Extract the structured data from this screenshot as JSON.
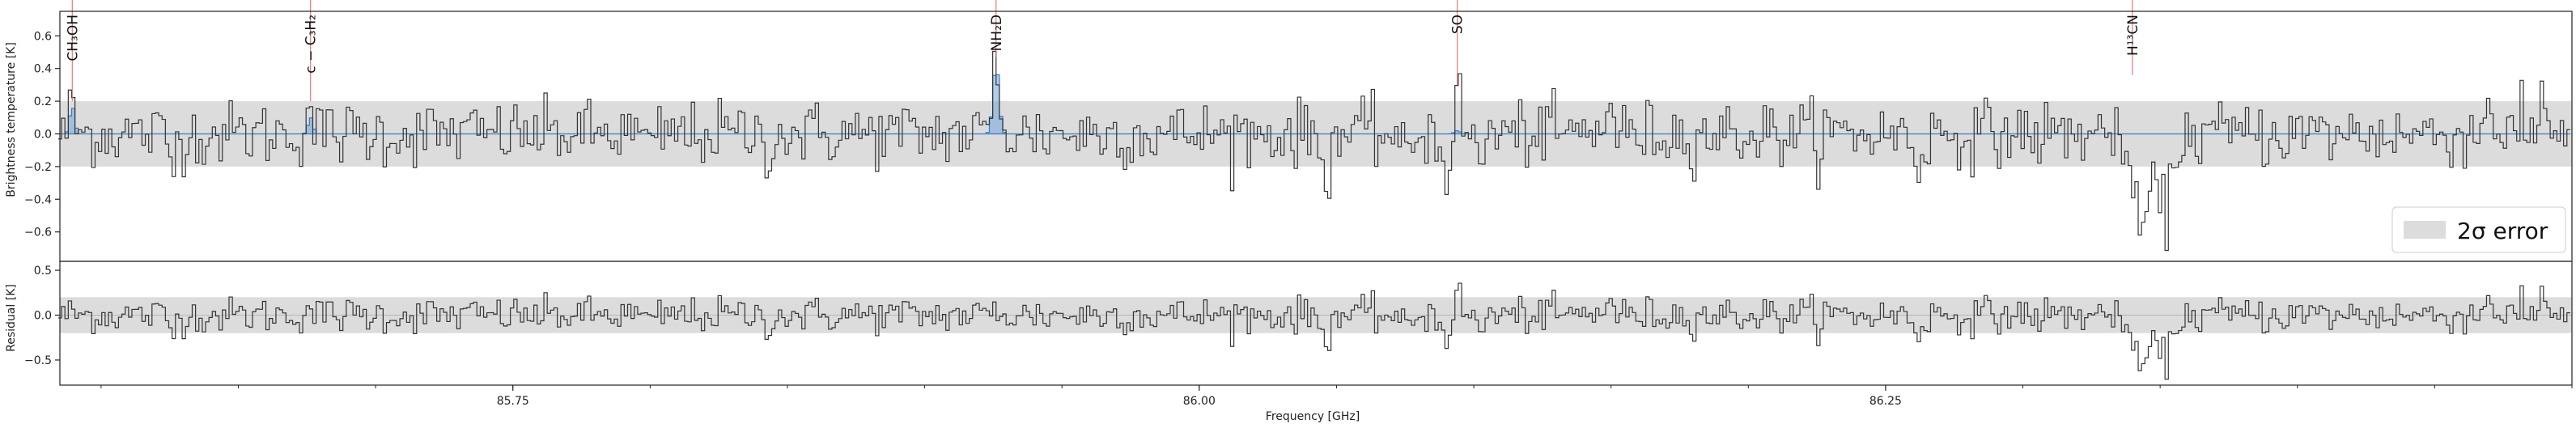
{
  "chart_data": [
    {
      "type": "line",
      "panel": "spectrum",
      "title": "",
      "xlabel": "",
      "ylabel": "Brightness temperature [K]",
      "xlim": [
        85.585,
        86.5
      ],
      "ylim": [
        -0.78,
        0.75
      ],
      "yticks": [
        -0.6,
        -0.4,
        -0.2,
        0.0,
        0.2,
        0.4,
        0.6
      ],
      "ytick_labels": [
        "−0.6",
        "−0.4",
        "−0.2",
        "0.0",
        "0.2",
        "0.4",
        "0.6"
      ],
      "error_band": [
        -0.2,
        0.2
      ],
      "grid": false,
      "legend": {
        "placement": "lower-right",
        "entries": [
          "2σ error"
        ]
      },
      "spectral_lines": [
        {
          "label": "CH₃OH",
          "freq": 85.5895,
          "peak": 0.2,
          "model_amp": 0.17,
          "model_width": 0.0009
        },
        {
          "label": "c − C₃H₂",
          "freq": 85.6763,
          "peak": 0.2,
          "model_amp": 0.1,
          "model_width": 0.0009
        },
        {
          "label": "NH₂D",
          "freq": 85.926,
          "peak": 0.47,
          "model_amp": 0.42,
          "model_width": 0.0011
        },
        {
          "label": "SO",
          "freq": 86.094,
          "peak": 0.3,
          "model_amp": 0.02,
          "model_width": 0.001
        },
        {
          "label": "H¹³CN",
          "freq": 86.3399,
          "peak": 0.36,
          "model_amp": 0.0,
          "model_width": 0.001
        }
      ],
      "features": [
        {
          "freq": 85.626,
          "amp": -0.22,
          "width": 0.001
        },
        {
          "freq": 85.8,
          "amp": -0.15,
          "width": 0.001
        },
        {
          "freq": 85.842,
          "amp": -0.14,
          "width": 0.001
        },
        {
          "freq": 86.046,
          "amp": -0.25,
          "width": 0.0015
        },
        {
          "freq": 86.075,
          "amp": -0.18,
          "width": 0.0015
        },
        {
          "freq": 86.09,
          "amp": -0.22,
          "width": 0.0015
        },
        {
          "freq": 86.102,
          "amp": -0.15,
          "width": 0.0015
        },
        {
          "freq": 86.149,
          "amp": 0.23,
          "width": 0.0012
        },
        {
          "freq": 86.262,
          "amp": -0.2,
          "width": 0.0015
        },
        {
          "freq": 86.3345,
          "amp": 0.3,
          "width": 0.0012
        },
        {
          "freq": 86.342,
          "amp": -0.6,
          "width": 0.0045
        },
        {
          "freq": 86.352,
          "amp": -0.42,
          "width": 0.0025
        },
        {
          "freq": 86.47,
          "amp": 0.26,
          "width": 0.0012
        },
        {
          "freq": 86.49,
          "amp": 0.28,
          "width": 0.0012
        }
      ],
      "noise_sigma": 0.1,
      "channel_width_ghz": 0.00122
    },
    {
      "type": "line",
      "panel": "residual",
      "title": "",
      "xlabel": "Frequency [GHz]",
      "ylabel": "Residual [K]",
      "xlim": [
        85.585,
        86.5
      ],
      "ylim": [
        -0.78,
        0.6
      ],
      "yticks": [
        -0.5,
        0.0,
        0.5
      ],
      "ytick_labels": [
        "−0.5",
        "0.0",
        "0.5"
      ],
      "xticks": [
        85.75,
        86.0,
        86.25
      ],
      "xtick_labels": [
        "85.75",
        "86.00",
        "86.25"
      ],
      "error_band": [
        -0.2,
        0.2
      ],
      "grid": false
    }
  ]
}
